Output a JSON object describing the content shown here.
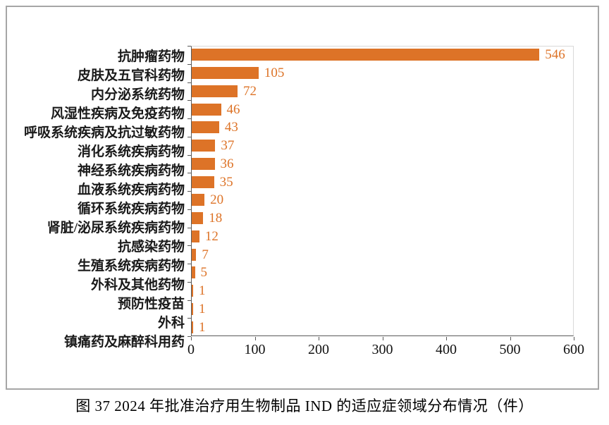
{
  "figure": {
    "caption": "图 37  2024 年批准治疗用生物制品 IND 的适应症领域分布情况（件）"
  },
  "chart_data": {
    "type": "bar",
    "orientation": "horizontal",
    "title": "",
    "xlabel": "",
    "ylabel": "",
    "categories": [
      "抗肿瘤药物",
      "皮肤及五官科药物",
      "内分泌系统药物",
      "风湿性疾病及免疫药物",
      "呼吸系统疾病及抗过敏药物",
      "消化系统疾病药物",
      "神经系统疾病药物",
      "血液系统疾病药物",
      "循环系统疾病药物",
      "肾脏/泌尿系统疾病药物",
      "抗感染药物",
      "生殖系统疾病药物",
      "外科及其他药物",
      "预防性疫苗",
      "外科",
      "镇痛药及麻醉科用药"
    ],
    "values": [
      546,
      105,
      72,
      46,
      43,
      37,
      36,
      35,
      20,
      18,
      12,
      7,
      5,
      1,
      1,
      1
    ],
    "xlim": [
      0,
      600
    ],
    "x_ticks": [
      "0",
      "100",
      "200",
      "300",
      "400",
      "500",
      "600"
    ],
    "grid": false,
    "legend": false,
    "bar_color": "#DD7327",
    "value_label_color": "#DD7327",
    "axis_color": "#595959",
    "plot_frame_color": "#D9D9D9",
    "outer_border_color": "#A6A6A6"
  }
}
